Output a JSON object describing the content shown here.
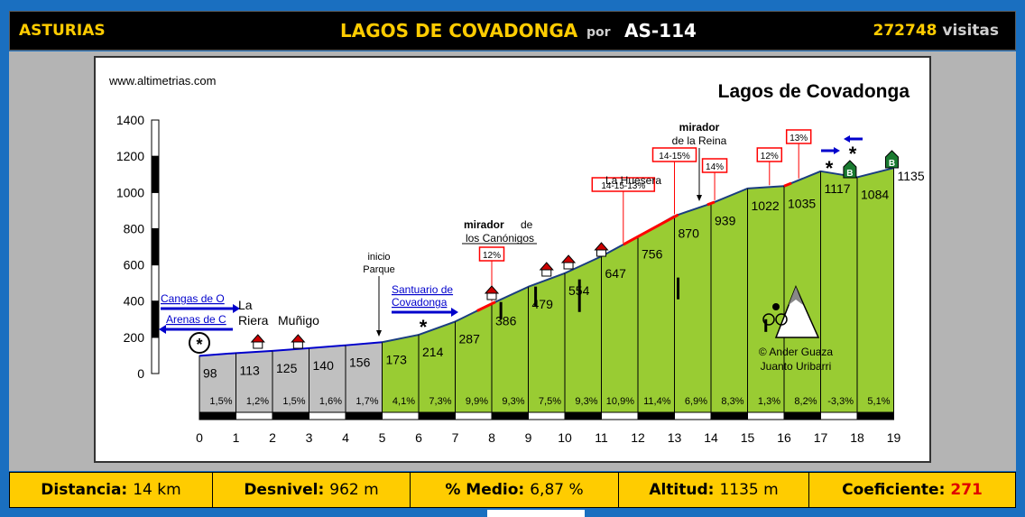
{
  "header": {
    "region": "ASTURIAS",
    "title": "LAGOS DE COVADONGA",
    "por": "por",
    "road": "AS-114",
    "visits_count": "272748",
    "visits_label": "visitas"
  },
  "stats": {
    "distancia_label": "Distancia:",
    "distancia_value": "14 km",
    "desnivel_label": "Desnivel:",
    "desnivel_value": "962 m",
    "medio_label": "% Medio:",
    "medio_value": "6,87 %",
    "altitud_label": "Altitud:",
    "altitud_value": "1135 m",
    "coef_label": "Coeficiente:",
    "coef_value": "271"
  },
  "chart_data": {
    "type": "area",
    "site": "www.altimetrias.com",
    "title": "Lagos de Covadonga",
    "ylim": [
      0,
      1400
    ],
    "y_ticks": [
      "0",
      "200",
      "400",
      "600",
      "800",
      "1000",
      "1200",
      "1400"
    ],
    "x_ticks": [
      "0",
      "1",
      "2",
      "3",
      "4",
      "5",
      "6",
      "7",
      "8",
      "9",
      "10",
      "11",
      "12",
      "13",
      "14",
      "15",
      "16",
      "17",
      "18",
      "19"
    ],
    "x": [
      0,
      1,
      2,
      3,
      4,
      5,
      6,
      7,
      8,
      9,
      10,
      11,
      12,
      13,
      14,
      15,
      16,
      17,
      18,
      19
    ],
    "altitude": [
      98,
      113,
      125,
      140,
      156,
      173,
      214,
      287,
      386,
      479,
      554,
      647,
      756,
      870,
      939,
      1022,
      1035,
      1117,
      1084,
      1135
    ],
    "altitude_labels": [
      "98",
      "113",
      "125",
      "140",
      "156",
      "173",
      "214",
      "287",
      "386",
      "479",
      "554",
      "647",
      "756",
      "870",
      "939",
      "1022",
      "1035",
      "1117",
      "1084",
      "1135"
    ],
    "gradients": [
      "1,5%",
      "1,2%",
      "1,5%",
      "1,6%",
      "1,7%",
      "4,1%",
      "7,3%",
      "9,9%",
      "9,3%",
      "7,5%",
      "9,3%",
      "10,9%",
      "11,4%",
      "6,9%",
      "8,3%",
      "1,3%",
      "8,2%",
      "-3,3%",
      "5,1%"
    ],
    "annotations": {
      "cangas": "Cangas de O",
      "arenas": "Arenas de C",
      "la": "La",
      "riera": "Riera",
      "munigo": "Muñigo",
      "inicio": "inicio",
      "parque": "Parque",
      "santuario1": "Santuario de",
      "santuario2": "Covadonga",
      "mirador_bold": "mirador",
      "de": "de",
      "canonigos": "los Canónigos",
      "huesera": "La Huesera",
      "mirador_reina1": "mirador",
      "mirador_reina2": "de la Reina",
      "credit1": "© Ander Guaza",
      "credit2": "Juanto Uribarri",
      "signs": [
        "12%",
        "14-15-13%",
        "14-15%",
        "14%",
        "12%",
        "13%"
      ],
      "hotel": "B"
    },
    "colors": {
      "flat": "#c0c0c0",
      "climb": "#99cc33",
      "steep": "#ff0000",
      "route": "#0000cc"
    }
  }
}
